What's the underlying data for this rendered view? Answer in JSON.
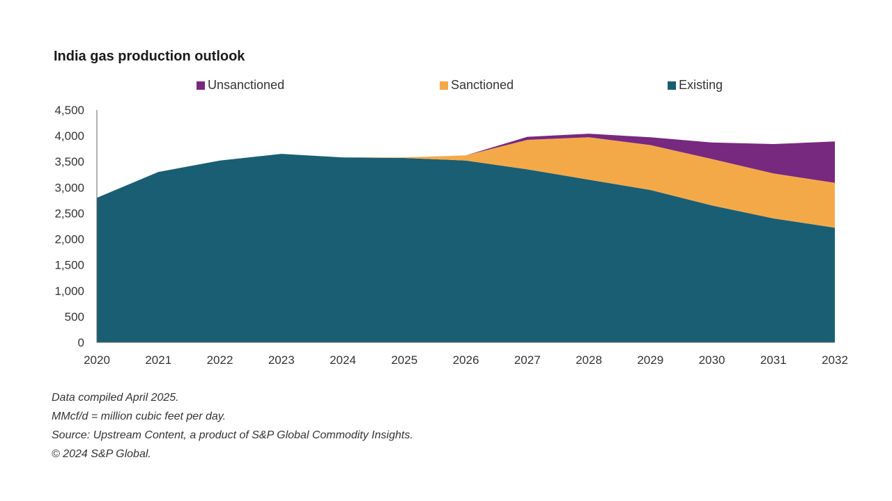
{
  "chart_data": {
    "type": "area",
    "stacked": true,
    "title": "India gas production outlook",
    "xlabel": "",
    "ylabel": "",
    "x": [
      "2020",
      "2021",
      "2022",
      "2023",
      "2024",
      "2025",
      "2026",
      "2027",
      "2028",
      "2029",
      "2030",
      "2031",
      "2032"
    ],
    "ylim": [
      0,
      4500
    ],
    "yticks": [
      "0",
      "500",
      "1,000",
      "1,500",
      "2,000",
      "2,500",
      "3,000",
      "3,500",
      "4,000",
      "4,500"
    ],
    "legend_position": "top",
    "grid": false,
    "series": [
      {
        "name": "Existing",
        "color": "#1a5e74",
        "values": [
          2800,
          3300,
          3520,
          3650,
          3580,
          3570,
          3520,
          3350,
          3150,
          2950,
          2650,
          2400,
          2220
        ]
      },
      {
        "name": "Sanctioned",
        "color": "#f4a949",
        "values": [
          0,
          0,
          0,
          0,
          0,
          10,
          100,
          570,
          820,
          870,
          900,
          870,
          870
        ]
      },
      {
        "name": "Unsanctioned",
        "color": "#77287f",
        "values": [
          0,
          0,
          0,
          0,
          0,
          0,
          0,
          60,
          70,
          150,
          320,
          570,
          800
        ]
      }
    ],
    "legend_order": [
      "Unsanctioned",
      "Sanctioned",
      "Existing"
    ]
  },
  "legend": {
    "unsanctioned": "Unsanctioned",
    "sanctioned": "Sanctioned",
    "existing": "Existing"
  },
  "notes": {
    "line1": "Data compiled April 2025.",
    "line2": "MMcf/d = million cubic feet per day.",
    "line3": "Source: Upstream Content, a product of S&P Global Commodity Insights.",
    "line4": "© 2024 S&P Global."
  }
}
